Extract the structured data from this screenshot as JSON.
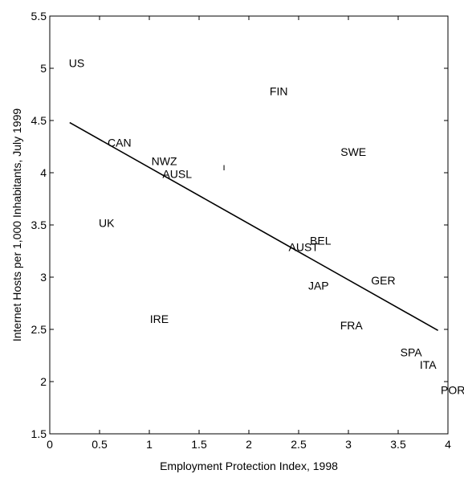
{
  "chart_data": {
    "type": "scatter",
    "xlabel": "Employment Protection Index, 1998",
    "ylabel": "Internet Hosts per 1,000 Inhabitants, July 1999",
    "xlim": [
      0,
      4
    ],
    "ylim": [
      1.5,
      5.5
    ],
    "xticks": [
      0,
      0.5,
      1,
      1.5,
      2,
      2.5,
      3,
      3.5,
      4
    ],
    "xtick_labels": [
      "0",
      "0.5",
      "1",
      "1.5",
      "2",
      "2.5",
      "3",
      "3.5",
      "4"
    ],
    "yticks": [
      1.5,
      2,
      2.5,
      3,
      3.5,
      4,
      4.5,
      5,
      5.5
    ],
    "ytick_labels": [
      "1.5",
      "2",
      "2.5",
      "3",
      "3.5",
      "4",
      "4.5",
      "5",
      "5.5"
    ],
    "grid": false,
    "points": [
      {
        "label": "US",
        "x": 0.27,
        "y": 5.05
      },
      {
        "label": "FIN",
        "x": 2.3,
        "y": 4.78
      },
      {
        "label": "CAN",
        "x": 0.7,
        "y": 4.29
      },
      {
        "label": "SWE",
        "x": 3.05,
        "y": 4.2
      },
      {
        "label": "NWZ",
        "x": 1.15,
        "y": 4.11
      },
      {
        "label": "AUSL",
        "x": 1.28,
        "y": 3.99
      },
      {
        "label": "UK",
        "x": 0.57,
        "y": 3.52
      },
      {
        "label": "BEL",
        "x": 2.72,
        "y": 3.35
      },
      {
        "label": "AUST",
        "x": 2.55,
        "y": 3.29
      },
      {
        "label": "GER",
        "x": 3.35,
        "y": 2.97
      },
      {
        "label": "JAP",
        "x": 2.7,
        "y": 2.92
      },
      {
        "label": "IRE",
        "x": 1.1,
        "y": 2.6
      },
      {
        "label": "FRA",
        "x": 3.03,
        "y": 2.54
      },
      {
        "label": "SPA",
        "x": 3.63,
        "y": 2.28
      },
      {
        "label": "ITA",
        "x": 3.8,
        "y": 2.16
      },
      {
        "label": "POR",
        "x": 4.05,
        "y": 1.92
      }
    ],
    "stray_mark": {
      "text": "ı",
      "x": 1.75,
      "y": 4.06
    },
    "fit_line": {
      "x": [
        0.2,
        3.9
      ],
      "y": [
        4.48,
        2.49
      ]
    },
    "colors": {
      "axis": "#000000",
      "line": "#000000",
      "background": "#ffffff"
    }
  }
}
